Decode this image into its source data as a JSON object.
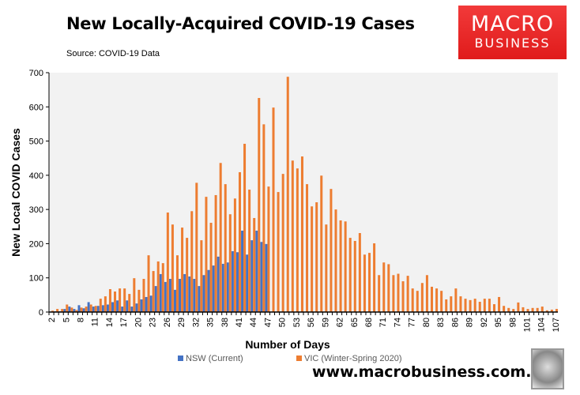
{
  "header": {
    "title": "New Locally-Acquired COVID-19 Cases",
    "source": "Source: COVID-19 Data"
  },
  "logo": {
    "line1": "MACRO",
    "line2": "BUSINESS"
  },
  "footer": {
    "site": "www.macrobusiness.com.au"
  },
  "chart_data": {
    "type": "bar",
    "title": "New Locally-Acquired COVID-19 Cases",
    "xlabel": "Number of Days",
    "ylabel": "New Local COVID Cases",
    "ylim": [
      0,
      700
    ],
    "yticks": [
      0,
      100,
      200,
      300,
      400,
      500,
      600,
      700
    ],
    "x_start": 2,
    "x_end": 107,
    "x_tick_step": 3,
    "grid": false,
    "legend": "bottom",
    "colors": {
      "NSW (Current)": "#4472c4",
      "VIC (Winter-Spring 2020)": "#ed7d31",
      "plot_bg": "#f2f2f2"
    },
    "series": [
      {
        "name": "NSW (Current)",
        "values": [
          0,
          2,
          2,
          9,
          16,
          9,
          20,
          11,
          29,
          16,
          18,
          20,
          22,
          29,
          34,
          16,
          34,
          16,
          25,
          37,
          44,
          48,
          76,
          111,
          88,
          97,
          65,
          97,
          111,
          104,
          97,
          76,
          108,
          123,
          136,
          162,
          141,
          145,
          178,
          175,
          238,
          168,
          210,
          238,
          205,
          199
        ]
      },
      {
        "name": "VIC (Winter-Spring 2020)",
        "values": [
          4,
          9,
          9,
          22,
          13,
          6,
          13,
          16,
          22,
          18,
          39,
          46,
          67,
          60,
          69,
          69,
          53,
          99,
          65,
          97,
          166,
          120,
          148,
          143,
          291,
          256,
          166,
          247,
          217,
          295,
          378,
          210,
          337,
          261,
          342,
          436,
          374,
          286,
          332,
          409,
          492,
          358,
          275,
          626,
          549,
          367,
          598,
          351,
          404,
          688,
          443,
          420,
          455,
          374,
          309,
          321,
          399,
          256,
          360,
          300,
          268,
          265,
          217,
          208,
          231,
          168,
          173,
          201,
          108,
          145,
          140,
          108,
          112,
          90,
          106,
          69,
          62,
          85,
          108,
          74,
          69,
          62,
          37,
          46,
          69,
          46,
          39,
          35,
          39,
          30,
          39,
          39,
          23,
          44,
          18,
          12,
          9,
          28,
          14,
          9,
          12,
          12,
          16,
          5,
          7,
          9
        ]
      }
    ]
  }
}
